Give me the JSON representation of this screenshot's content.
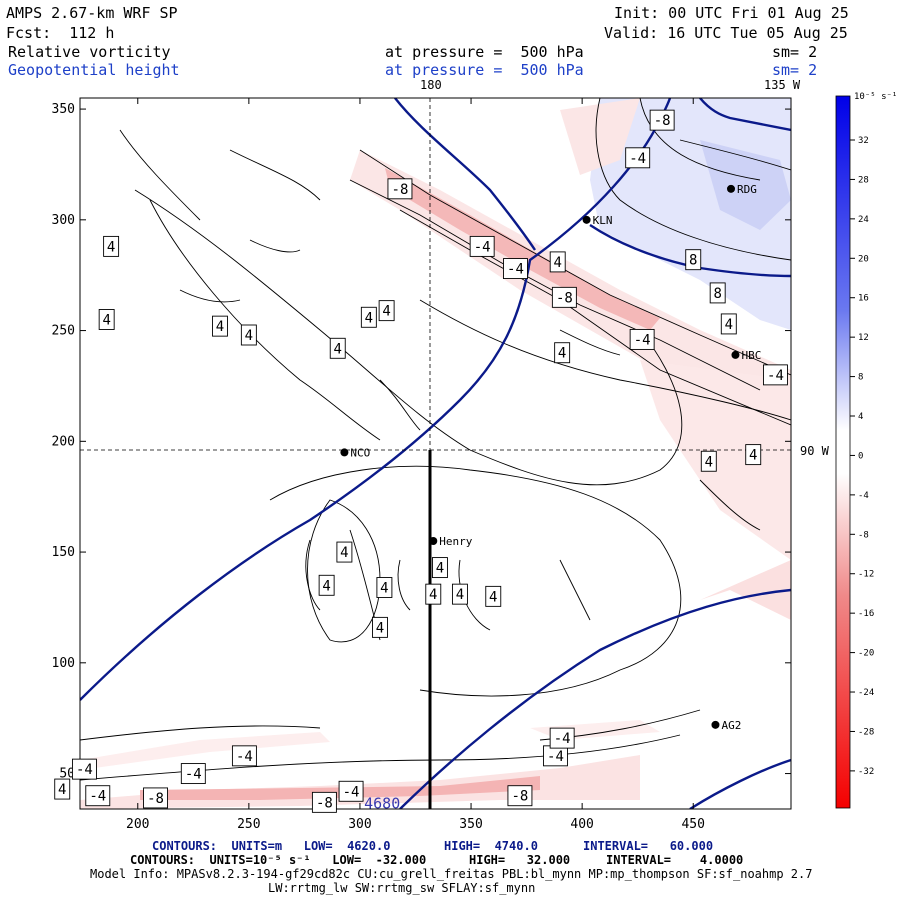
{
  "header": {
    "model_title": "AMPS 2.67-km WRF SP",
    "forecast": "Fcst:  112 h",
    "init": "Init: 00 UTC Fri 01 Aug 25",
    "valid": "Valid: 16 UTC Tue 05 Aug 25",
    "field1_name": "Relative vorticity",
    "field1_level": "at pressure =  500 hPa",
    "field1_smooth": "sm= 2",
    "field2_name": "Geopotential height",
    "field2_level": "at pressure =  500 hPa",
    "field2_smooth": "sm= 2"
  },
  "map": {
    "lon_180": "180",
    "lon_135w": "135 W",
    "lat_90w": "90 W",
    "stations": [
      {
        "id": "KLN",
        "x": 402,
        "y": 300
      },
      {
        "id": "RDG",
        "x": 467,
        "y": 314
      },
      {
        "id": "HBC",
        "x": 469,
        "y": 239
      },
      {
        "id": "NCO",
        "x": 293,
        "y": 195
      },
      {
        "id": "Henry",
        "x": 333,
        "y": 155
      },
      {
        "id": "AG2",
        "x": 460,
        "y": 72
      }
    ],
    "contour_labels": [
      {
        "t": "-8",
        "x": 436,
        "y": 345
      },
      {
        "t": "-8",
        "x": 318,
        "y": 314
      },
      {
        "t": "-4",
        "x": 425,
        "y": 328
      },
      {
        "t": "-4",
        "x": 355,
        "y": 288
      },
      {
        "t": "-4",
        "x": 370,
        "y": 278
      },
      {
        "t": "-8",
        "x": 392,
        "y": 265
      },
      {
        "t": "4",
        "x": 389,
        "y": 281
      },
      {
        "t": "8",
        "x": 450,
        "y": 282
      },
      {
        "t": "8",
        "x": 461,
        "y": 267
      },
      {
        "t": "4",
        "x": 466,
        "y": 253
      },
      {
        "t": "-4",
        "x": 427,
        "y": 246
      },
      {
        "t": "-4",
        "x": 487,
        "y": 230
      },
      {
        "t": "4",
        "x": 457,
        "y": 191
      },
      {
        "t": "4",
        "x": 477,
        "y": 194
      },
      {
        "t": "4",
        "x": 391,
        "y": 240
      },
      {
        "t": "4",
        "x": 312,
        "y": 259
      },
      {
        "t": "4",
        "x": 304,
        "y": 256
      },
      {
        "t": "4",
        "x": 290,
        "y": 242
      },
      {
        "t": "4",
        "x": 237,
        "y": 252
      },
      {
        "t": "4",
        "x": 250,
        "y": 248
      },
      {
        "t": "4",
        "x": 186,
        "y": 255
      },
      {
        "t": "4",
        "x": 188,
        "y": 288
      },
      {
        "t": "4",
        "x": 293,
        "y": 150
      },
      {
        "t": "4",
        "x": 285,
        "y": 135
      },
      {
        "t": "4",
        "x": 311,
        "y": 134
      },
      {
        "t": "4",
        "x": 336,
        "y": 143
      },
      {
        "t": "4",
        "x": 333,
        "y": 131
      },
      {
        "t": "4",
        "x": 345,
        "y": 131
      },
      {
        "t": "4",
        "x": 360,
        "y": 130
      },
      {
        "t": "4",
        "x": 309,
        "y": 116
      },
      {
        "t": "-4",
        "x": 176,
        "y": 52
      },
      {
        "t": "-4",
        "x": 225,
        "y": 50
      },
      {
        "t": "-4",
        "x": 248,
        "y": 58
      },
      {
        "t": "-4",
        "x": 182,
        "y": 40
      },
      {
        "t": "4",
        "x": 166,
        "y": 43
      },
      {
        "t": "-8",
        "x": 208,
        "y": 39
      },
      {
        "t": "-8",
        "x": 284,
        "y": 37
      },
      {
        "t": "-4",
        "x": 296,
        "y": 42
      },
      {
        "t": "-8",
        "x": 372,
        "y": 40
      },
      {
        "t": "-4",
        "x": 388,
        "y": 58
      },
      {
        "t": "-4",
        "x": 391,
        "y": 66
      },
      {
        "t": "4680",
        "x": 310,
        "y": 37
      }
    ]
  },
  "chart_data": {
    "type": "heatmap",
    "x_ticks": [
      200,
      250,
      300,
      350,
      400,
      450
    ],
    "y_ticks": [
      50,
      100,
      150,
      200,
      250,
      300,
      350
    ],
    "xlim": [
      174,
      494
    ],
    "ylim": [
      34,
      355
    ],
    "colorbar_ticks": [
      32,
      28,
      24,
      20,
      16,
      12,
      8,
      4,
      0,
      -4,
      -8,
      -12,
      -16,
      -20,
      -24,
      -28,
      -32
    ],
    "colorbar_unit": "10⁻⁵ s⁻¹"
  },
  "footer": {
    "line1_a": "CONTOURS:  UNITS=m   LOW=  4620.0",
    "line1_b": "HIGH=  4740.0",
    "line1_c": "INTERVAL=   60.000",
    "line2_a": "CONTOURS:  UNITS=10⁻⁵ s⁻¹   LOW=  -32.000",
    "line2_b": "HIGH=   32.000",
    "line2_c": "INTERVAL=    4.0000",
    "line3": "Model Info: MPASv8.2.3-194-gf29cd82c CU:cu_grell_freitas PBL:bl_mynn MP:mp_thompson SF:sf_noahmp 2.7",
    "line4": "LW:rrtmg_lw SW:rrtmg_sw SFLAY:sf_mynn"
  }
}
